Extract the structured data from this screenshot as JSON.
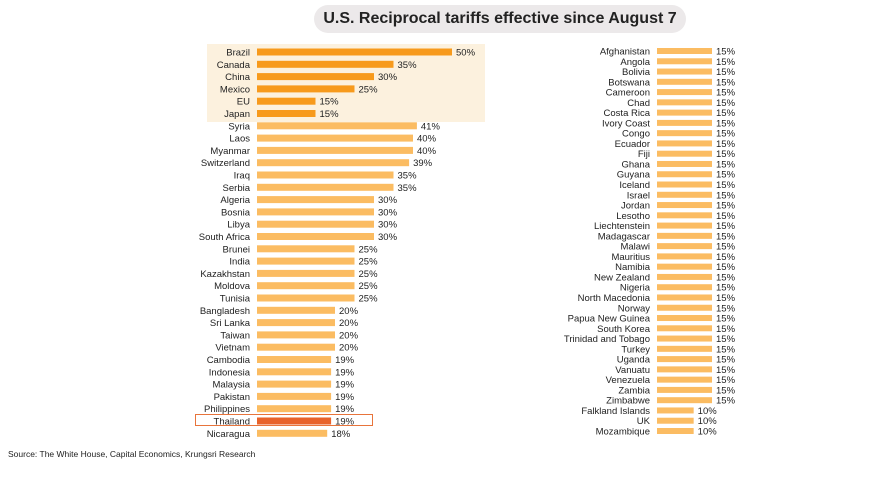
{
  "chart_data": {
    "type": "bar",
    "orientation": "horizontal",
    "title": "U.S. Reciprocal tariffs effective since August 7",
    "value_suffix": "%",
    "highlight_group": [
      "Brazil",
      "Canada",
      "China",
      "Mexico",
      "EU",
      "Japan"
    ],
    "highlight_country": "Thailand",
    "colors": {
      "highlight": "#f79a1c",
      "normal": "#fbbc62",
      "emphasis": "#e8632b",
      "box": "#e8743b",
      "group_bg": "#fcf1de",
      "title_bg": "#ece9ea"
    },
    "left_panel": [
      {
        "country": "Brazil",
        "value": 50
      },
      {
        "country": "Canada",
        "value": 35
      },
      {
        "country": "China",
        "value": 30
      },
      {
        "country": "Mexico",
        "value": 25
      },
      {
        "country": "EU",
        "value": 15
      },
      {
        "country": "Japan",
        "value": 15
      },
      {
        "country": "Syria",
        "value": 41
      },
      {
        "country": "Laos",
        "value": 40
      },
      {
        "country": "Myanmar",
        "value": 40
      },
      {
        "country": "Switzerland",
        "value": 39
      },
      {
        "country": "Iraq",
        "value": 35
      },
      {
        "country": "Serbia",
        "value": 35
      },
      {
        "country": "Algeria",
        "value": 30
      },
      {
        "country": "Bosnia",
        "value": 30
      },
      {
        "country": "Libya",
        "value": 30
      },
      {
        "country": "South Africa",
        "value": 30
      },
      {
        "country": "Brunei",
        "value": 25
      },
      {
        "country": "India",
        "value": 25
      },
      {
        "country": "Kazakhstan",
        "value": 25
      },
      {
        "country": "Moldova",
        "value": 25
      },
      {
        "country": "Tunisia",
        "value": 25
      },
      {
        "country": "Bangladesh",
        "value": 20
      },
      {
        "country": "Sri Lanka",
        "value": 20
      },
      {
        "country": "Taiwan",
        "value": 20
      },
      {
        "country": "Vietnam",
        "value": 20
      },
      {
        "country": "Cambodia",
        "value": 19
      },
      {
        "country": "Indonesia",
        "value": 19
      },
      {
        "country": "Malaysia",
        "value": 19
      },
      {
        "country": "Pakistan",
        "value": 19
      },
      {
        "country": "Philippines",
        "value": 19
      },
      {
        "country": "Thailand",
        "value": 19
      },
      {
        "country": "Nicaragua",
        "value": 18
      }
    ],
    "right_panel": [
      {
        "country": "Afghanistan",
        "value": 15
      },
      {
        "country": "Angola",
        "value": 15
      },
      {
        "country": "Bolivia",
        "value": 15
      },
      {
        "country": "Botswana",
        "value": 15
      },
      {
        "country": "Cameroon",
        "value": 15
      },
      {
        "country": "Chad",
        "value": 15
      },
      {
        "country": "Costa Rica",
        "value": 15
      },
      {
        "country": "Ivory Coast",
        "value": 15
      },
      {
        "country": "Congo",
        "value": 15
      },
      {
        "country": "Ecuador",
        "value": 15
      },
      {
        "country": "Fiji",
        "value": 15
      },
      {
        "country": "Ghana",
        "value": 15
      },
      {
        "country": "Guyana",
        "value": 15
      },
      {
        "country": "Iceland",
        "value": 15
      },
      {
        "country": "Israel",
        "value": 15
      },
      {
        "country": "Jordan",
        "value": 15
      },
      {
        "country": "Lesotho",
        "value": 15
      },
      {
        "country": "Liechtenstein",
        "value": 15
      },
      {
        "country": "Madagascar",
        "value": 15
      },
      {
        "country": "Malawi",
        "value": 15
      },
      {
        "country": "Mauritius",
        "value": 15
      },
      {
        "country": "Namibia",
        "value": 15
      },
      {
        "country": "New Zealand",
        "value": 15
      },
      {
        "country": "Nigeria",
        "value": 15
      },
      {
        "country": "North Macedonia",
        "value": 15
      },
      {
        "country": "Norway",
        "value": 15
      },
      {
        "country": "Papua New Guinea",
        "value": 15
      },
      {
        "country": "South Korea",
        "value": 15
      },
      {
        "country": "Trinidad and Tobago",
        "value": 15
      },
      {
        "country": "Turkey",
        "value": 15
      },
      {
        "country": "Uganda",
        "value": 15
      },
      {
        "country": "Vanuatu",
        "value": 15
      },
      {
        "country": "Venezuela",
        "value": 15
      },
      {
        "country": "Zambia",
        "value": 15
      },
      {
        "country": "Zimbabwe",
        "value": 15
      },
      {
        "country": "Falkland Islands",
        "value": 10
      },
      {
        "country": "UK",
        "value": 10
      },
      {
        "country": "Mozambique",
        "value": 10
      }
    ]
  },
  "source": "Source: The White House, Capital Economics, Krungsri Research"
}
